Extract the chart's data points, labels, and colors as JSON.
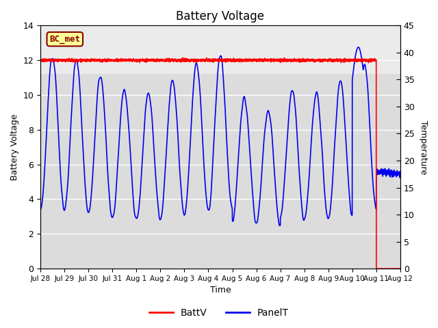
{
  "title": "Battery Voltage",
  "xlabel": "Time",
  "ylabel_left": "Battery Voltage",
  "ylabel_right": "Temperature",
  "ylim_left": [
    0,
    14
  ],
  "ylim_right": [
    0,
    45
  ],
  "yticks_left": [
    0,
    2,
    4,
    6,
    8,
    10,
    12,
    14
  ],
  "yticks_right": [
    0,
    5,
    10,
    15,
    20,
    25,
    30,
    35,
    40,
    45
  ],
  "xtick_labels": [
    "Jul 28",
    "Jul 29",
    "Jul 30",
    "Jul 31",
    "Aug 1",
    "Aug 2",
    "Aug 3",
    "Aug 4",
    "Aug 5",
    "Aug 6",
    "Aug 7",
    "Aug 8",
    "Aug 9",
    "Aug 10",
    "Aug 11",
    "Aug 12"
  ],
  "bg_color": "#dcdcdc",
  "bg_color_upper": "#ebebeb",
  "grid_color": "#ffffff",
  "battv_color": "#ff0000",
  "panelt_color": "#0000ee",
  "legend_battv": "BattV",
  "legend_panelt": "PanelT",
  "label_box_text": "BC_met",
  "label_box_facecolor": "#ffff99",
  "label_box_edgecolor": "#8b0000",
  "label_box_textcolor": "#8b0000",
  "total_hours": 360,
  "n_points": 4000
}
